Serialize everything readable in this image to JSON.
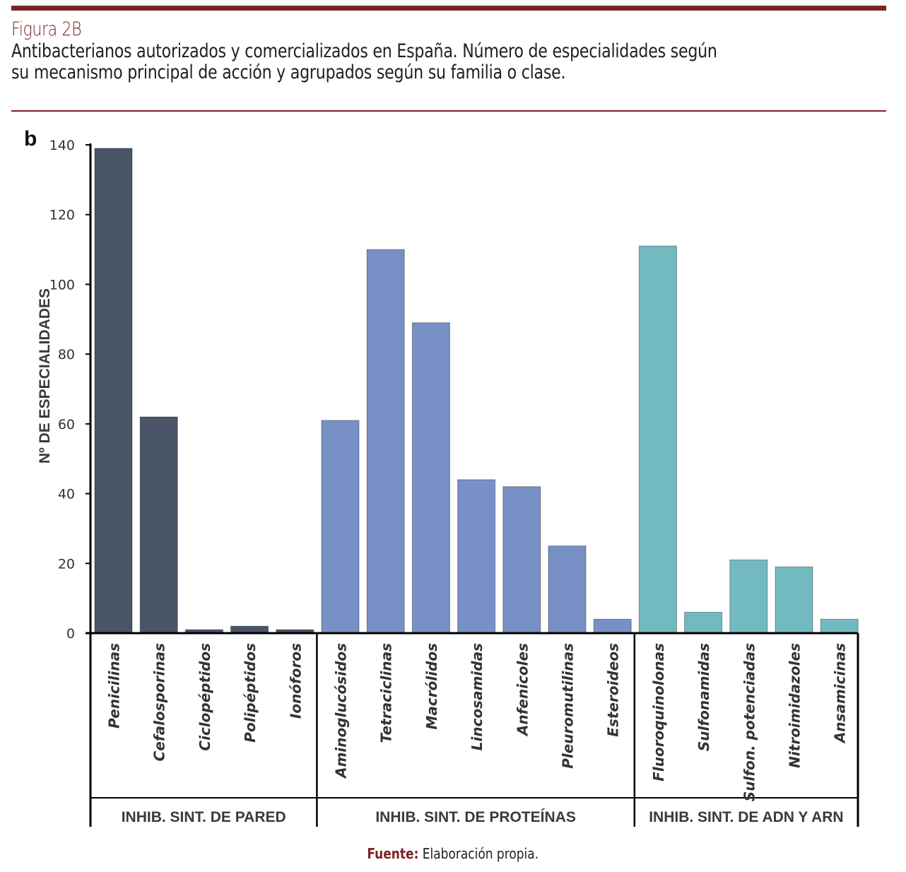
{
  "header": {
    "figure_label": "Figura 2B",
    "title_line1": "Antibacterianos autorizados y comercializados en España. Número de especialidades según",
    "title_line2": "su mecanismo principal de acción y agrupados según su familia o clase.",
    "accent_color": "#7a2326"
  },
  "panel_letter": "b",
  "footer": {
    "source_label": "Fuente:",
    "source_text": "Elaboración propia."
  },
  "chart_data": {
    "type": "bar",
    "title": "",
    "xlabel": "",
    "ylabel": "Nº DE ESPECIALIDADES",
    "ylim": [
      0,
      140
    ],
    "yticks": [
      0,
      20,
      40,
      60,
      80,
      100,
      120,
      140
    ],
    "grid": false,
    "legend": "none",
    "categories": [
      "Penicilinas",
      "Cefalosporinas",
      "Ciclopéptidos",
      "Polipéptidos",
      "Ionóforos",
      "Aminoglucósidos",
      "Tetraciclinas",
      "Macrólidos",
      "Lincosamidas",
      "Anfenicoles",
      "Pleuromutilinas",
      "Esteroideos",
      "Fluoroquinolonas",
      "Sulfonamidas",
      "Sulfon. potenciadas",
      "Nitroimidazoles",
      "Ansamicinas"
    ],
    "values": [
      139,
      62,
      1,
      2,
      1,
      61,
      110,
      89,
      44,
      42,
      25,
      4,
      111,
      6,
      21,
      19,
      4
    ],
    "groups": [
      {
        "name": "INHIB. SINT. DE PARED",
        "start": 0,
        "count": 5,
        "color": "#4a5568"
      },
      {
        "name": "INHIB. SINT. DE PROTEÍNAS",
        "start": 5,
        "count": 7,
        "color": "#7790c6"
      },
      {
        "name": "INHIB. SINT. DE ADN Y ARN",
        "start": 12,
        "count": 5,
        "color": "#72b9c0"
      }
    ]
  }
}
